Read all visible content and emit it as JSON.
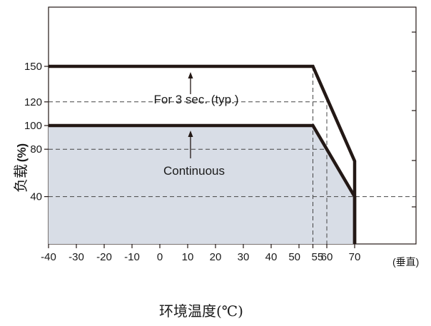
{
  "chart_data": {
    "type": "line",
    "title": "",
    "xlabel": "环境温度(℃)",
    "xlabel_suffix": "(垂直)",
    "ylabel_cn": "负载",
    "ylabel_unit": "(%)",
    "xlim": [
      -40,
      70
    ],
    "ylim": [
      0,
      200
    ],
    "x_ticks": [
      -40,
      -30,
      -20,
      -10,
      0,
      10,
      20,
      30,
      40,
      50,
      55,
      60,
      70
    ],
    "y_ticks": [
      40,
      80,
      100,
      120,
      150
    ],
    "series": [
      {
        "name": "For 3 sec. (typ.)",
        "x": [
          -40,
          55,
          70,
          70
        ],
        "y": [
          150,
          150,
          70,
          0
        ]
      },
      {
        "name": "Continuous",
        "x": [
          -40,
          55,
          70,
          70
        ],
        "y": [
          100,
          100,
          40,
          0
        ],
        "filled": true
      }
    ],
    "reference_lines": {
      "horizontal": [
        120,
        80,
        40
      ],
      "vertical": [
        55,
        60
      ]
    },
    "colors": {
      "line": "#231815",
      "fill": "#d8dde6",
      "dashed": "#444444"
    },
    "grid": false
  }
}
